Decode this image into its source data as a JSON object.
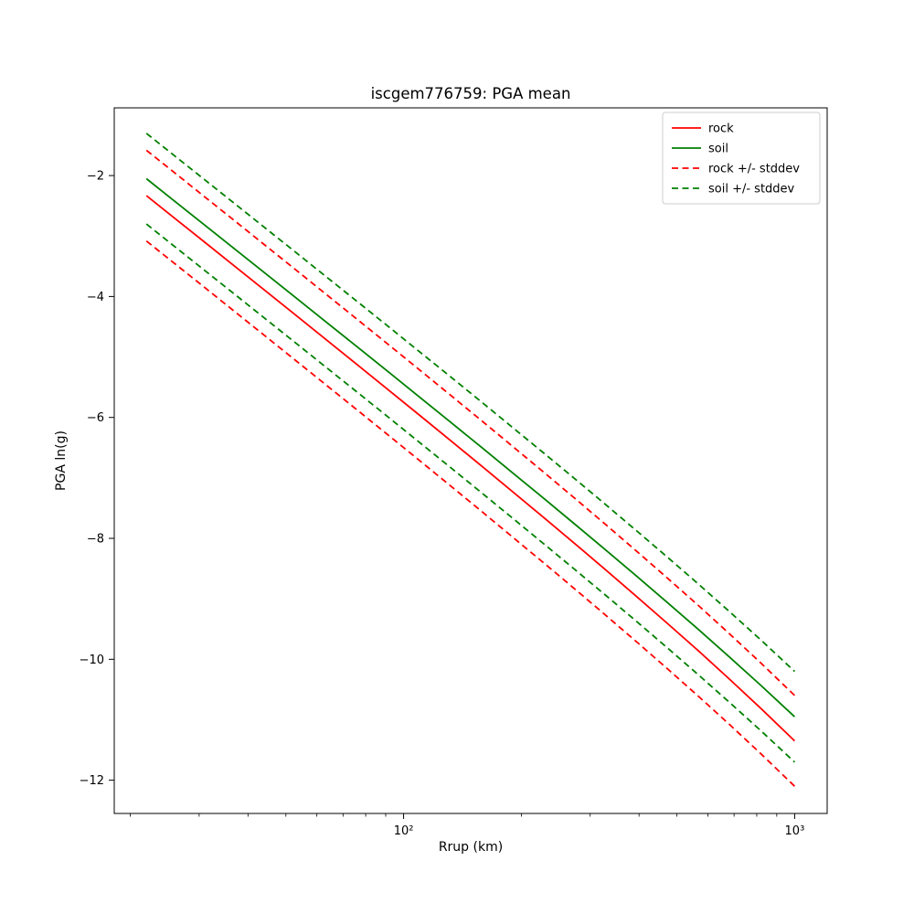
{
  "figure": {
    "title": "iscgem776759: PGA mean",
    "xlabel": "Rrup (km)",
    "ylabel": "PGA ln(g)"
  },
  "chart_data": {
    "type": "line",
    "title": "iscgem776759: PGA mean",
    "xlabel": "Rrup (km)",
    "ylabel": "PGA ln(g)",
    "x_scale": "log",
    "grid": false,
    "legend_location": "upper right",
    "xlim": [
      18.2,
      1211
    ],
    "ylim": [
      -12.55,
      -0.88
    ],
    "x_ticks": [
      {
        "value": 100,
        "label": "10²"
      },
      {
        "value": 1000,
        "label": "10³"
      }
    ],
    "x_minor_ticks": [
      20,
      30,
      40,
      50,
      60,
      70,
      80,
      90,
      200,
      300,
      400,
      500,
      600,
      700,
      800,
      900
    ],
    "y_ticks": [
      {
        "value": -2,
        "label": "−2"
      },
      {
        "value": -4,
        "label": "−4"
      },
      {
        "value": -6,
        "label": "−6"
      },
      {
        "value": -8,
        "label": "−8"
      },
      {
        "value": -10,
        "label": "−10"
      },
      {
        "value": -12,
        "label": "−12"
      }
    ],
    "x": [
      22,
      26,
      31,
      37,
      44,
      53,
      63,
      76,
      91,
      110,
      132,
      158,
      190,
      228,
      274,
      329,
      395,
      474,
      569,
      683,
      820,
      1000
    ],
    "series": [
      {
        "name": "rock",
        "label": "rock",
        "color": "#ff0000",
        "style": "solid",
        "values": [
          -2.332,
          -2.707,
          -3.102,
          -3.499,
          -3.89,
          -4.309,
          -4.7,
          -5.125,
          -5.534,
          -5.967,
          -6.385,
          -6.8,
          -7.228,
          -7.654,
          -8.088,
          -8.524,
          -8.966,
          -9.413,
          -9.869,
          -10.335,
          -10.814,
          -11.349
        ]
      },
      {
        "name": "soil",
        "label": "soil",
        "color": "#008000",
        "style": "solid",
        "values": [
          -2.052,
          -2.426,
          -2.819,
          -3.214,
          -3.603,
          -4.02,
          -4.408,
          -4.83,
          -5.237,
          -5.667,
          -6.081,
          -6.492,
          -6.916,
          -7.337,
          -7.765,
          -8.195,
          -8.629,
          -9.068,
          -9.514,
          -9.969,
          -10.433,
          -10.951
        ]
      },
      {
        "name": "rock-stddev-band",
        "label": "rock +/- stddev",
        "color": "#ff0000",
        "style": "dashed",
        "stddev": 0.75,
        "upper": [
          -1.582,
          -1.957,
          -2.352,
          -2.749,
          -3.14,
          -3.559,
          -3.95,
          -4.375,
          -4.784,
          -5.217,
          -5.635,
          -6.05,
          -6.478,
          -6.904,
          -7.338,
          -7.774,
          -8.216,
          -8.663,
          -9.119,
          -9.585,
          -10.064,
          -10.599
        ],
        "lower": [
          -3.082,
          -3.457,
          -3.852,
          -4.249,
          -4.64,
          -5.059,
          -5.45,
          -5.875,
          -6.284,
          -6.717,
          -7.135,
          -7.55,
          -7.978,
          -8.404,
          -8.838,
          -9.274,
          -9.716,
          -10.163,
          -10.619,
          -11.085,
          -11.564,
          -12.099
        ]
      },
      {
        "name": "soil-stddev-band",
        "label": "soil +/- stddev",
        "color": "#008000",
        "style": "dashed",
        "stddev": 0.75,
        "upper": [
          -1.302,
          -1.676,
          -2.069,
          -2.464,
          -2.853,
          -3.27,
          -3.658,
          -4.08,
          -4.487,
          -4.917,
          -5.331,
          -5.742,
          -6.166,
          -6.587,
          -7.015,
          -7.445,
          -7.879,
          -8.318,
          -8.764,
          -9.219,
          -9.683,
          -10.201
        ],
        "lower": [
          -2.802,
          -3.176,
          -3.569,
          -3.964,
          -4.353,
          -4.77,
          -5.158,
          -5.58,
          -5.987,
          -6.417,
          -6.831,
          -7.242,
          -7.666,
          -8.087,
          -8.515,
          -8.945,
          -9.379,
          -9.818,
          -10.264,
          -10.719,
          -11.183,
          -11.701
        ]
      }
    ]
  }
}
